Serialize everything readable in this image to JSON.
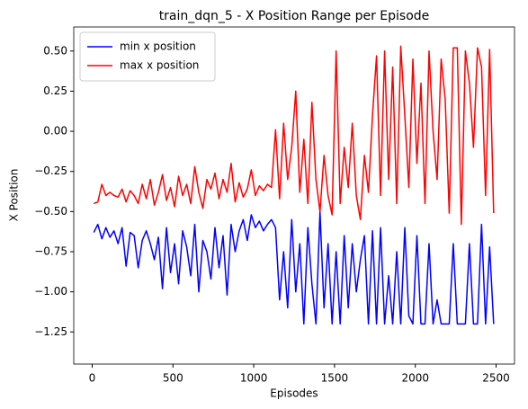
{
  "chart_data": {
    "type": "line",
    "title": "train_dqn_5 - X Position Range per Episode",
    "xlabel": "Episodes",
    "ylabel": "X Position",
    "x": [
      10,
      35,
      60,
      85,
      110,
      135,
      160,
      185,
      210,
      235,
      260,
      285,
      310,
      335,
      360,
      385,
      410,
      435,
      460,
      485,
      510,
      535,
      560,
      585,
      610,
      635,
      660,
      685,
      710,
      735,
      760,
      785,
      810,
      835,
      860,
      885,
      910,
      935,
      960,
      985,
      1010,
      1035,
      1060,
      1085,
      1110,
      1135,
      1160,
      1185,
      1210,
      1235,
      1260,
      1285,
      1310,
      1335,
      1360,
      1385,
      1410,
      1435,
      1460,
      1485,
      1510,
      1535,
      1560,
      1585,
      1610,
      1635,
      1660,
      1685,
      1710,
      1735,
      1760,
      1785,
      1810,
      1835,
      1860,
      1885,
      1910,
      1935,
      1960,
      1985,
      2010,
      2035,
      2060,
      2085,
      2110,
      2135,
      2160,
      2185,
      2210,
      2235,
      2260,
      2285,
      2310,
      2335,
      2360,
      2385,
      2410,
      2435,
      2460,
      2485
    ],
    "series": [
      {
        "name": "min x position",
        "color": "#0000ff",
        "values": [
          -0.63,
          -0.58,
          -0.67,
          -0.6,
          -0.66,
          -0.62,
          -0.7,
          -0.6,
          -0.84,
          -0.63,
          -0.65,
          -0.85,
          -0.68,
          -0.62,
          -0.7,
          -0.8,
          -0.66,
          -0.98,
          -0.6,
          -0.88,
          -0.7,
          -0.95,
          -0.62,
          -0.72,
          -0.9,
          -0.58,
          -1.0,
          -0.68,
          -0.75,
          -0.92,
          -0.6,
          -0.85,
          -0.65,
          -1.02,
          -0.58,
          -0.75,
          -0.62,
          -0.55,
          -0.68,
          -0.52,
          -0.6,
          -0.56,
          -0.62,
          -0.58,
          -0.55,
          -0.6,
          -1.05,
          -0.75,
          -1.1,
          -0.55,
          -1.0,
          -0.7,
          -1.2,
          -0.6,
          -0.95,
          -1.2,
          -0.5,
          -1.1,
          -0.7,
          -1.2,
          -0.75,
          -1.2,
          -0.65,
          -1.1,
          -0.7,
          -1.0,
          -0.8,
          -0.65,
          -1.2,
          -0.62,
          -1.2,
          -0.6,
          -1.2,
          -0.9,
          -1.2,
          -0.75,
          -1.2,
          -0.6,
          -1.15,
          -1.2,
          -0.65,
          -1.2,
          -1.2,
          -0.7,
          -1.2,
          -1.05,
          -1.2,
          -1.2,
          -1.2,
          -0.7,
          -1.2,
          -1.2,
          -1.2,
          -0.7,
          -1.2,
          -1.2,
          -0.58,
          -1.2,
          -0.72,
          -1.2
        ]
      },
      {
        "name": "max x position",
        "color": "#ff0000",
        "values": [
          -0.45,
          -0.44,
          -0.33,
          -0.4,
          -0.38,
          -0.4,
          -0.41,
          -0.36,
          -0.44,
          -0.37,
          -0.4,
          -0.45,
          -0.33,
          -0.42,
          -0.3,
          -0.46,
          -0.38,
          -0.27,
          -0.43,
          -0.35,
          -0.47,
          -0.28,
          -0.4,
          -0.33,
          -0.45,
          -0.22,
          -0.38,
          -0.48,
          -0.3,
          -0.36,
          -0.26,
          -0.42,
          -0.3,
          -0.38,
          -0.2,
          -0.44,
          -0.32,
          -0.41,
          -0.36,
          -0.24,
          -0.4,
          -0.34,
          -0.37,
          -0.33,
          -0.35,
          0.01,
          -0.42,
          0.05,
          -0.3,
          -0.1,
          0.25,
          -0.38,
          -0.05,
          -0.45,
          0.18,
          -0.3,
          -0.5,
          -0.15,
          -0.4,
          -0.52,
          0.5,
          -0.45,
          -0.1,
          -0.35,
          0.05,
          -0.4,
          -0.55,
          -0.15,
          -0.38,
          0.1,
          0.47,
          -0.4,
          0.5,
          -0.3,
          0.4,
          -0.45,
          0.53,
          0.1,
          -0.35,
          0.45,
          -0.2,
          0.3,
          -0.45,
          0.5,
          0.0,
          -0.3,
          0.45,
          0.2,
          -0.51,
          0.52,
          0.52,
          -0.58,
          0.5,
          0.3,
          -0.1,
          0.52,
          0.4,
          -0.4,
          0.51,
          -0.51
        ]
      }
    ],
    "xlim": [
      -114,
      2614
    ],
    "xticks": [
      0,
      500,
      1000,
      1500,
      2000,
      2500
    ],
    "ylim": [
      -1.45,
      0.65
    ],
    "yticks": [
      {
        "value": -1.25,
        "label": "−1.25"
      },
      {
        "value": -1.0,
        "label": "−1.00"
      },
      {
        "value": -0.75,
        "label": "−0.75"
      },
      {
        "value": -0.5,
        "label": "−0.50"
      },
      {
        "value": -0.25,
        "label": "−0.25"
      },
      {
        "value": 0,
        "label": "0.00"
      },
      {
        "value": 0.25,
        "label": "0.25"
      },
      {
        "value": 0.5,
        "label": "0.50"
      }
    ],
    "legend": "upper left",
    "grid": false
  }
}
